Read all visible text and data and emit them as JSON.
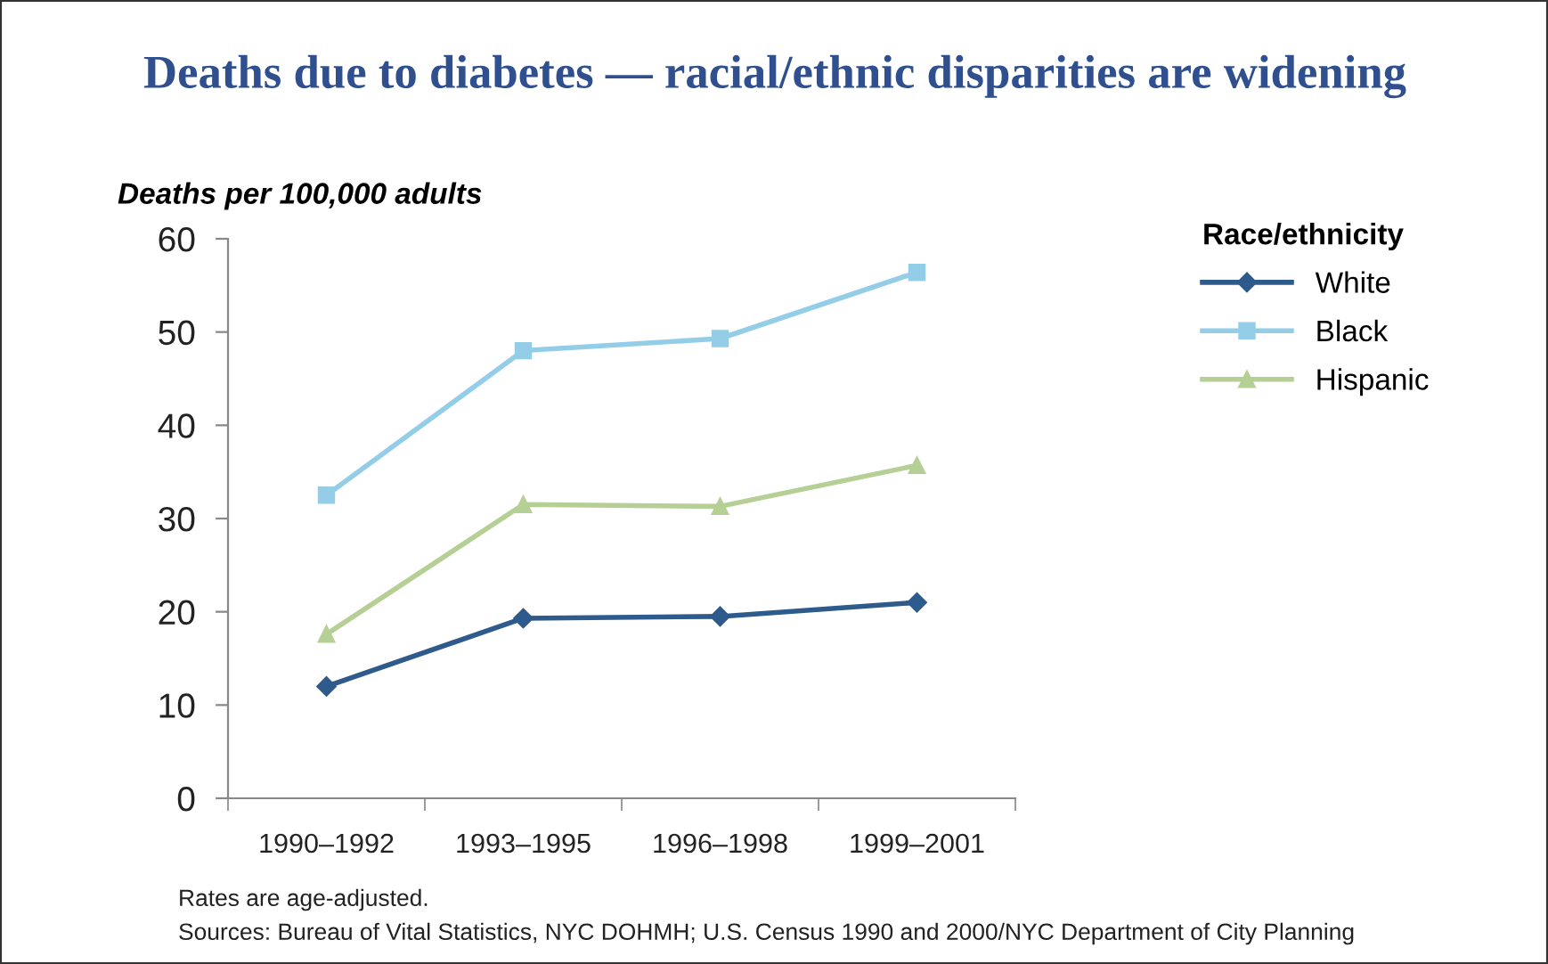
{
  "chart_data": {
    "type": "line",
    "title": "Deaths due to diabetes — racial/ethnic disparities are widening",
    "ylabel": "Deaths per 100,000 adults",
    "legend_title": "Race/ethnicity",
    "categories": [
      "1990–1992",
      "1993–1995",
      "1996–1998",
      "1999–2001"
    ],
    "series": [
      {
        "name": "White",
        "color": "#2e5a8c",
        "marker": "diamond",
        "values": [
          12.0,
          19.3,
          19.5,
          21.0
        ]
      },
      {
        "name": "Black",
        "color": "#93cde8",
        "marker": "square",
        "values": [
          32.5,
          48.0,
          49.3,
          56.4
        ]
      },
      {
        "name": "Hispanic",
        "color": "#b5cf95",
        "marker": "triangle",
        "values": [
          17.6,
          31.5,
          31.3,
          35.7
        ]
      }
    ],
    "ylim": [
      0,
      60
    ],
    "yticks": [
      0,
      10,
      20,
      30,
      40,
      50,
      60
    ],
    "grid": false,
    "legend": "right",
    "line_style": "solid",
    "annotations": [
      "Rates are age-adjusted.",
      "Sources: Bureau of Vital Statistics, NYC DOHMH; U.S. Census 1990 and 2000/NYC Department of City Planning"
    ]
  }
}
